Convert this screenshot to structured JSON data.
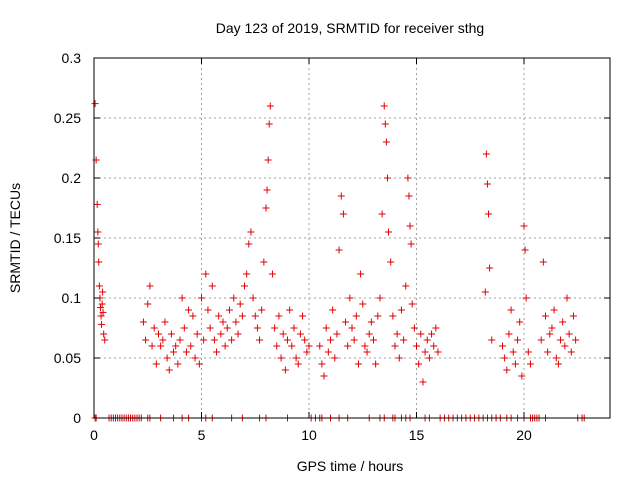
{
  "chart_data": {
    "type": "scatter",
    "title": "Day 123 of 2019, SRMTID for receiver sthg",
    "xlabel": "GPS time / hours",
    "ylabel": "SRMTID / TECUs",
    "xlim": [
      0,
      24
    ],
    "ylim": [
      0,
      0.3
    ],
    "xticks": [
      0,
      5,
      10,
      15,
      20
    ],
    "yticks": [
      0,
      0.05,
      0.1,
      0.15,
      0.2,
      0.25,
      0.3
    ],
    "xtick_labels": [
      "0",
      "5",
      "10",
      "15",
      "20"
    ],
    "ytick_labels": [
      "0",
      "0.05",
      "0.1",
      "0.15",
      "0.2",
      "0.25",
      "0.3"
    ],
    "grid": true,
    "marker": "+",
    "color": "#e00000",
    "series": [
      {
        "name": "SRMTID",
        "x": [
          0.05,
          0.1,
          0.15,
          0.18,
          0.2,
          0.22,
          0.25,
          0.28,
          0.3,
          0.33,
          0.35,
          0.38,
          0.4,
          0.42,
          0.45,
          0.5,
          2.3,
          2.4,
          2.5,
          2.6,
          2.7,
          2.8,
          2.9,
          3.0,
          3.1,
          3.2,
          3.3,
          3.4,
          3.5,
          3.6,
          3.7,
          3.8,
          3.9,
          4.0,
          4.1,
          4.2,
          4.3,
          4.4,
          4.5,
          4.6,
          4.7,
          4.8,
          4.9,
          5.0,
          5.1,
          5.2,
          5.3,
          5.4,
          5.5,
          5.6,
          5.7,
          5.8,
          5.9,
          6.0,
          6.1,
          6.2,
          6.3,
          6.4,
          6.5,
          6.6,
          6.7,
          6.8,
          6.9,
          7.0,
          7.1,
          7.2,
          7.3,
          7.4,
          7.5,
          7.6,
          7.7,
          7.8,
          7.9,
          8.0,
          8.05,
          8.1,
          8.15,
          8.2,
          8.3,
          8.4,
          8.5,
          8.6,
          8.7,
          8.8,
          8.9,
          9.0,
          9.1,
          9.2,
          9.3,
          9.4,
          9.5,
          9.6,
          9.7,
          9.8,
          9.9,
          10.0,
          10.5,
          10.6,
          10.7,
          10.8,
          10.9,
          11.0,
          11.1,
          11.2,
          11.3,
          11.4,
          11.5,
          11.6,
          11.7,
          11.8,
          11.9,
          12.0,
          12.1,
          12.2,
          12.3,
          12.4,
          12.5,
          12.6,
          12.7,
          12.8,
          12.9,
          13.0,
          13.1,
          13.2,
          13.3,
          13.4,
          13.5,
          13.55,
          13.6,
          13.65,
          13.7,
          13.8,
          13.9,
          14.0,
          14.1,
          14.2,
          14.3,
          14.4,
          14.5,
          14.6,
          14.65,
          14.7,
          14.75,
          14.8,
          14.9,
          15.0,
          15.1,
          15.2,
          15.3,
          15.4,
          15.5,
          15.6,
          15.7,
          15.8,
          15.9,
          16.0,
          18.2,
          18.25,
          18.3,
          18.35,
          18.4,
          18.5,
          19.0,
          19.1,
          19.2,
          19.3,
          19.4,
          19.5,
          19.6,
          19.7,
          19.8,
          19.9,
          20.0,
          20.05,
          20.1,
          20.2,
          20.3,
          20.8,
          20.9,
          21.0,
          21.1,
          21.2,
          21.3,
          21.4,
          21.5,
          21.6,
          21.7,
          21.8,
          21.9,
          22.0,
          22.1,
          22.2,
          22.3,
          22.4
        ],
        "y": [
          0.262,
          0.215,
          0.178,
          0.155,
          0.145,
          0.13,
          0.11,
          0.1,
          0.092,
          0.085,
          0.078,
          0.095,
          0.105,
          0.088,
          0.07,
          0.065,
          0.08,
          0.065,
          0.095,
          0.11,
          0.06,
          0.075,
          0.045,
          0.07,
          0.06,
          0.065,
          0.08,
          0.05,
          0.04,
          0.07,
          0.055,
          0.06,
          0.045,
          0.065,
          0.1,
          0.075,
          0.055,
          0.09,
          0.06,
          0.085,
          0.05,
          0.07,
          0.045,
          0.1,
          0.065,
          0.12,
          0.09,
          0.075,
          0.11,
          0.065,
          0.055,
          0.085,
          0.07,
          0.08,
          0.06,
          0.075,
          0.09,
          0.065,
          0.1,
          0.08,
          0.07,
          0.095,
          0.085,
          0.11,
          0.12,
          0.145,
          0.155,
          0.1,
          0.085,
          0.075,
          0.065,
          0.09,
          0.13,
          0.175,
          0.19,
          0.215,
          0.245,
          0.26,
          0.12,
          0.075,
          0.06,
          0.085,
          0.05,
          0.07,
          0.04,
          0.065,
          0.09,
          0.06,
          0.075,
          0.05,
          0.045,
          0.07,
          0.085,
          0.065,
          0.055,
          0.06,
          0.06,
          0.045,
          0.035,
          0.075,
          0.055,
          0.065,
          0.09,
          0.05,
          0.07,
          0.14,
          0.185,
          0.17,
          0.08,
          0.06,
          0.1,
          0.075,
          0.065,
          0.085,
          0.045,
          0.12,
          0.095,
          0.06,
          0.055,
          0.07,
          0.08,
          0.065,
          0.045,
          0.085,
          0.1,
          0.17,
          0.26,
          0.245,
          0.23,
          0.2,
          0.155,
          0.13,
          0.085,
          0.06,
          0.07,
          0.05,
          0.09,
          0.065,
          0.11,
          0.2,
          0.185,
          0.16,
          0.145,
          0.095,
          0.075,
          0.06,
          0.045,
          0.07,
          0.03,
          0.055,
          0.065,
          0.05,
          0.07,
          0.06,
          0.075,
          0.055,
          0.105,
          0.22,
          0.195,
          0.17,
          0.125,
          0.065,
          0.06,
          0.05,
          0.04,
          0.07,
          0.09,
          0.055,
          0.045,
          0.065,
          0.08,
          0.035,
          0.16,
          0.14,
          0.1,
          0.055,
          0.045,
          0.065,
          0.13,
          0.085,
          0.055,
          0.07,
          0.075,
          0.09,
          0.05,
          0.045,
          0.065,
          0.08,
          0.06,
          0.1,
          0.07,
          0.055,
          0.085,
          0.065
        ],
        "zeros_x": [
          0.05,
          0.1,
          0.7,
          0.8,
          0.9,
          1.0,
          1.1,
          1.2,
          1.3,
          1.4,
          1.5,
          1.6,
          1.7,
          1.8,
          1.9,
          2.0,
          2.1,
          2.2,
          2.5,
          2.6,
          3.1,
          3.7,
          4.1,
          4.4,
          5.0,
          5.2,
          5.5,
          6.4,
          6.9,
          7.7,
          8.0,
          9.0,
          10.1,
          10.3,
          10.5,
          10.6,
          11.0,
          11.4,
          11.8,
          12.8,
          13.3,
          13.5,
          13.9,
          14.0,
          14.3,
          14.5,
          14.7,
          15.4,
          15.6,
          16.1,
          16.3,
          16.5,
          16.7,
          16.9,
          17.1,
          17.3,
          17.5,
          17.7,
          17.9,
          18.1,
          18.3,
          18.5,
          18.7,
          18.9,
          19.2,
          19.4,
          19.7,
          20.0,
          20.3,
          20.4,
          20.5,
          20.6,
          20.7,
          21.0,
          22.5,
          22.7,
          22.8
        ]
      }
    ]
  }
}
